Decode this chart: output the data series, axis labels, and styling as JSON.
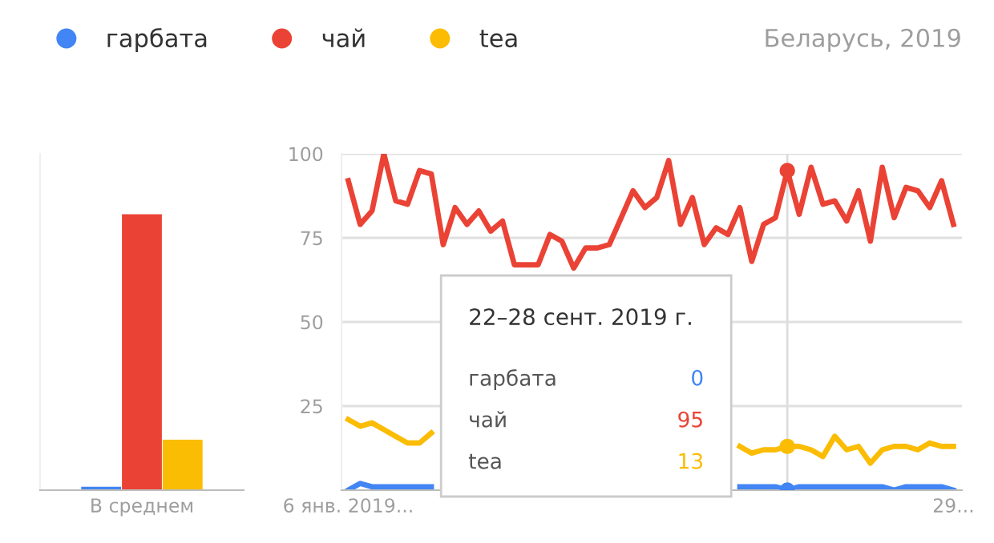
{
  "chart_data": [
    {
      "type": "bar",
      "categories": [
        "В среднем"
      ],
      "ylim": [
        0,
        100
      ],
      "tick_labels": "x",
      "series": [
        {
          "color": "#4285f4",
          "values": [
            1
          ]
        },
        {
          "color": "#ea4335",
          "values": [
            82
          ]
        },
        {
          "color": "#fbbc04",
          "values": [
            15
          ]
        }
      ]
    },
    {
      "type": "line",
      "subtitle": "Беларусь, 2019",
      "legend": "top",
      "grid": "y",
      "x": [
        "2019-01-06",
        "2019-01-13",
        "2019-01-20",
        "2019-01-27",
        "2019-02-03",
        "2019-02-10",
        "2019-02-17",
        "2019-02-24",
        "2019-03-03",
        "2019-03-10",
        "2019-03-17",
        "2019-03-24",
        "2019-03-31",
        "2019-04-07",
        "2019-04-14",
        "2019-04-21",
        "2019-04-28",
        "2019-05-05",
        "2019-05-12",
        "2019-05-19",
        "2019-05-26",
        "2019-06-02",
        "2019-06-09",
        "2019-06-16",
        "2019-06-23",
        "2019-06-30",
        "2019-07-07",
        "2019-07-14",
        "2019-07-21",
        "2019-07-28",
        "2019-08-04",
        "2019-08-11",
        "2019-08-18",
        "2019-08-25",
        "2019-09-01",
        "2019-09-08",
        "2019-09-15",
        "2019-09-22",
        "2019-09-29",
        "2019-10-06",
        "2019-10-13",
        "2019-10-20",
        "2019-10-27",
        "2019-11-03",
        "2019-11-10",
        "2019-11-17",
        "2019-11-24",
        "2019-12-01",
        "2019-12-08",
        "2019-12-15",
        "2019-12-22",
        "2019-12-29"
      ],
      "xlim": [
        "2019-01-02",
        "2020-01-03"
      ],
      "xticks": [
        {
          "value": "2019-01-06",
          "label": "6 янв. 2019..."
        },
        {
          "value": "2019-12-29",
          "label": "29..."
        }
      ],
      "ylim": [
        0,
        100
      ],
      "yticks": [
        25,
        50,
        75,
        100
      ],
      "series": [
        {
          "name": "гарбата",
          "color": "#4285f4",
          "values": [
            0,
            2,
            1,
            1,
            1,
            1,
            1,
            1,
            null,
            null,
            null,
            null,
            null,
            null,
            null,
            null,
            null,
            null,
            null,
            null,
            null,
            null,
            null,
            null,
            null,
            null,
            null,
            null,
            null,
            null,
            null,
            null,
            null,
            1,
            1,
            1,
            1,
            0,
            1,
            1,
            1,
            1,
            1,
            1,
            1,
            1,
            0,
            1,
            1,
            1,
            1,
            0
          ]
        },
        {
          "name": "чай",
          "color": "#ea4335",
          "values": [
            92,
            79,
            83,
            100,
            86,
            85,
            95,
            94,
            73,
            84,
            79,
            83,
            77,
            80,
            67,
            67,
            67,
            76,
            74,
            66,
            72,
            72,
            73,
            81,
            89,
            84,
            87,
            98,
            79,
            87,
            73,
            78,
            76,
            84,
            68,
            79,
            81,
            95,
            82,
            96,
            85,
            86,
            80,
            89,
            74,
            96,
            81,
            90,
            89,
            84,
            92,
            79
          ]
        },
        {
          "name": "tea",
          "color": "#fbbc04",
          "values": [
            21,
            19,
            20,
            18,
            16,
            14,
            14,
            17,
            null,
            null,
            null,
            null,
            null,
            null,
            null,
            null,
            null,
            null,
            null,
            null,
            null,
            null,
            null,
            null,
            null,
            null,
            null,
            null,
            null,
            null,
            null,
            null,
            null,
            13,
            11,
            12,
            12,
            13,
            13,
            12,
            10,
            16,
            12,
            13,
            8,
            12,
            13,
            13,
            12,
            14,
            13,
            13
          ]
        }
      ],
      "ref_lines": [
        {
          "axis": "x",
          "value": "2019-09-22",
          "color": "#dddddd"
        }
      ],
      "annotations": [
        "22–28 сент. 2019 г.",
        "0",
        "95",
        "13"
      ]
    }
  ]
}
